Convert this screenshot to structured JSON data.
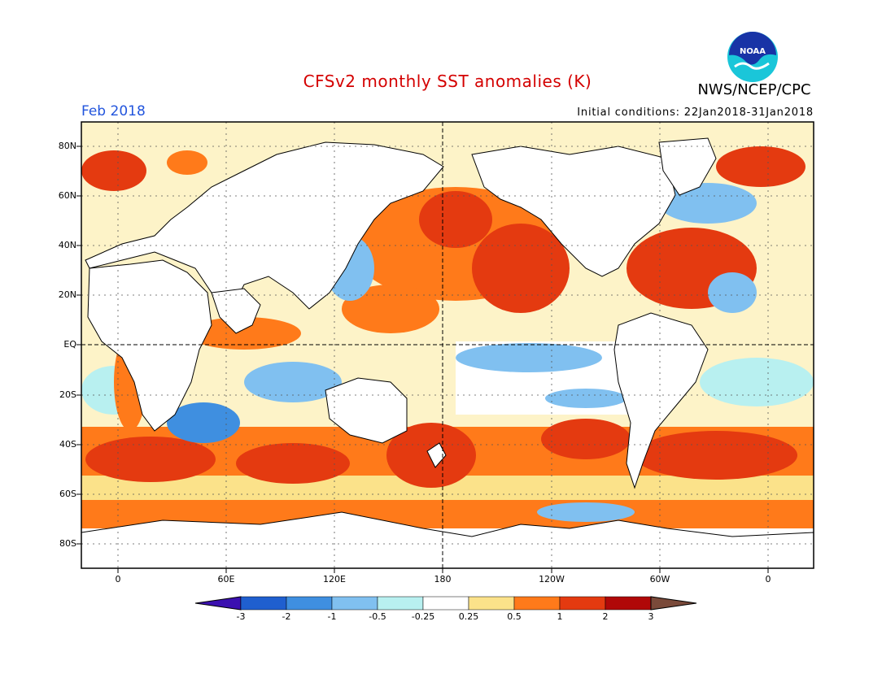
{
  "title": "CFSv2 monthly SST anomalies (K)",
  "agency": "NWS/NCEP/CPC",
  "logo_text": "NOAA",
  "period": "Feb 2018",
  "initial_conditions": "Initial conditions: 22Jan2018-31Jan2018",
  "lat_labels": [
    "80N",
    "60N",
    "40N",
    "20N",
    "EQ",
    "20S",
    "40S",
    "60S",
    "80S"
  ],
  "lon_labels": [
    "0",
    "60E",
    "120E",
    "180",
    "120W",
    "60W",
    "0"
  ],
  "colorbar": {
    "levels": [
      "-3",
      "-2",
      "-1",
      "-0.5",
      "-0.25",
      "0.25",
      "0.5",
      "1",
      "2",
      "3"
    ],
    "colors": [
      "#3b10b0",
      "#1f5fcf",
      "#3f8fe0",
      "#80c0f0",
      "#b8f0f0",
      "#ffffff",
      "#fbe28a",
      "#ff7a1a",
      "#e43a10",
      "#b00808",
      "#7a4a3a"
    ]
  },
  "colors": {
    "land": "#ffffff",
    "coast": "#000000",
    "grid": "#555555"
  }
}
